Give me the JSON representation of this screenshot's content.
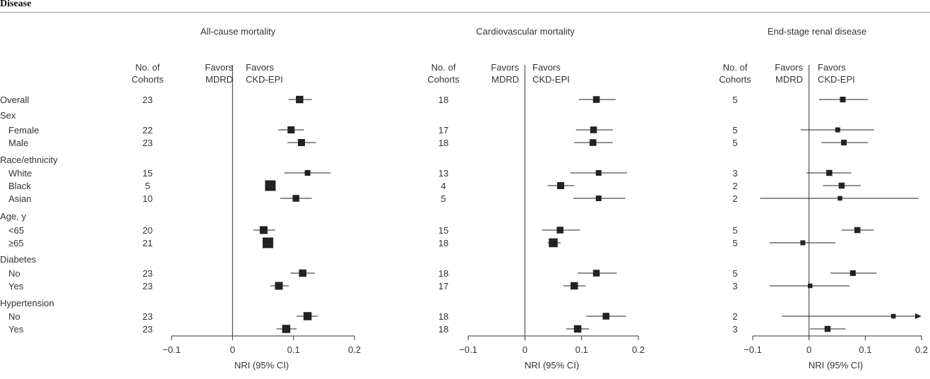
{
  "header_label": "Disease",
  "column_headers": {
    "cohorts": [
      "No. of",
      "Cohorts"
    ],
    "favors_left": [
      "Favors",
      "MDRD"
    ],
    "favors_right": [
      "Favors",
      "CKD-EPI"
    ]
  },
  "rows": [
    {
      "label": "Overall",
      "type": "item",
      "indent": false
    },
    {
      "label": "Sex",
      "type": "group"
    },
    {
      "label": "Female",
      "type": "item",
      "indent": true
    },
    {
      "label": "Male",
      "type": "item",
      "indent": true
    },
    {
      "label": "Race/ethnicity",
      "type": "group"
    },
    {
      "label": "White",
      "type": "item",
      "indent": true
    },
    {
      "label": "Black",
      "type": "item",
      "indent": true
    },
    {
      "label": "Asian",
      "type": "item",
      "indent": true
    },
    {
      "label": "Age, y",
      "type": "group"
    },
    {
      "label": "<65",
      "type": "item",
      "indent": true
    },
    {
      "label": "≥65",
      "type": "item",
      "indent": true
    },
    {
      "label": "Diabetes",
      "type": "group"
    },
    {
      "label": "No",
      "type": "item",
      "indent": true
    },
    {
      "label": "Yes",
      "type": "item",
      "indent": true
    },
    {
      "label": "Hypertension",
      "type": "group"
    },
    {
      "label": "No",
      "type": "item",
      "indent": true
    },
    {
      "label": "Yes",
      "type": "item",
      "indent": true
    }
  ],
  "chart_data": [
    {
      "type": "forest",
      "title": "All-cause mortality",
      "xlabel": "NRI (95% CI)",
      "xlim": [
        -0.1,
        0.2
      ],
      "xticks": [
        "−0.1",
        "0",
        "0.1",
        "0.2"
      ],
      "x_tick_values": [
        -0.1,
        0,
        0.1,
        0.2
      ],
      "reference_line": 0,
      "cohorts": [
        "23",
        "22",
        "23",
        "15",
        "5",
        "10",
        "20",
        "21",
        "23",
        "23",
        "23",
        "23"
      ],
      "estimates": [
        0.11,
        0.096,
        0.113,
        0.123,
        0.062,
        0.104,
        0.051,
        0.058,
        0.115,
        0.076,
        0.123,
        0.088
      ],
      "ci_low": [
        0.092,
        0.075,
        0.09,
        0.085,
        0.055,
        0.078,
        0.034,
        0.05,
        0.095,
        0.062,
        0.105,
        0.072
      ],
      "ci_high": [
        0.13,
        0.117,
        0.137,
        0.161,
        0.07,
        0.13,
        0.07,
        0.066,
        0.135,
        0.092,
        0.14,
        0.105
      ],
      "weights": [
        0.55,
        0.5,
        0.5,
        0.3,
        1.0,
        0.45,
        0.6,
        1.0,
        0.55,
        0.6,
        0.65,
        0.65
      ]
    },
    {
      "type": "forest",
      "title": "Cardiovascular mortality",
      "xlabel": "NRI (95% CI)",
      "xlim": [
        -0.1,
        0.2
      ],
      "xticks": [
        "−0.1",
        "0",
        "0.1",
        "0.2"
      ],
      "x_tick_values": [
        -0.1,
        0,
        0.1,
        0.2
      ],
      "reference_line": 0,
      "cohorts": [
        "18",
        "17",
        "18",
        "13",
        "4",
        "5",
        "15",
        "18",
        "18",
        "17",
        "18",
        "18"
      ],
      "estimates": [
        0.126,
        0.121,
        0.12,
        0.13,
        0.063,
        0.13,
        0.062,
        0.05,
        0.126,
        0.087,
        0.143,
        0.093
      ],
      "ci_low": [
        0.095,
        0.09,
        0.087,
        0.08,
        0.04,
        0.085,
        0.03,
        0.04,
        0.093,
        0.068,
        0.108,
        0.073
      ],
      "ci_high": [
        0.16,
        0.155,
        0.155,
        0.18,
        0.087,
        0.177,
        0.097,
        0.063,
        0.162,
        0.107,
        0.178,
        0.113
      ],
      "weights": [
        0.45,
        0.45,
        0.45,
        0.3,
        0.5,
        0.3,
        0.45,
        0.75,
        0.45,
        0.55,
        0.45,
        0.55
      ]
    },
    {
      "type": "forest",
      "title": "End-stage renal disease",
      "xlabel": "NRI (95% CI)",
      "xlim": [
        -0.1,
        0.2
      ],
      "xticks": [
        "−0.1",
        "0",
        "0.1",
        "0.2"
      ],
      "x_tick_values": [
        -0.1,
        0,
        0.1,
        0.2
      ],
      "reference_line": 0,
      "cohorts": [
        "5",
        "5",
        "5",
        "3",
        "2",
        "2",
        "5",
        "5",
        "5",
        "3",
        "2",
        "3"
      ],
      "estimates": [
        0.06,
        0.051,
        0.062,
        0.036,
        0.058,
        0.055,
        0.086,
        -0.011,
        0.078,
        0.002,
        0.15,
        0.033
      ],
      "ci_low": [
        0.018,
        -0.015,
        0.022,
        -0.005,
        0.025,
        -0.087,
        0.058,
        -0.07,
        0.038,
        -0.07,
        -0.048,
        0.002
      ],
      "ci_high": [
        0.105,
        0.116,
        0.105,
        0.075,
        0.092,
        0.195,
        0.115,
        0.047,
        0.12,
        0.072,
        0.2,
        0.065
      ],
      "ci_high_truncated": [
        false,
        false,
        false,
        false,
        false,
        false,
        false,
        false,
        false,
        false,
        true,
        false
      ],
      "weights": [
        0.3,
        0.2,
        0.3,
        0.35,
        0.35,
        0.15,
        0.35,
        0.2,
        0.3,
        0.15,
        0.15,
        0.35
      ]
    }
  ]
}
